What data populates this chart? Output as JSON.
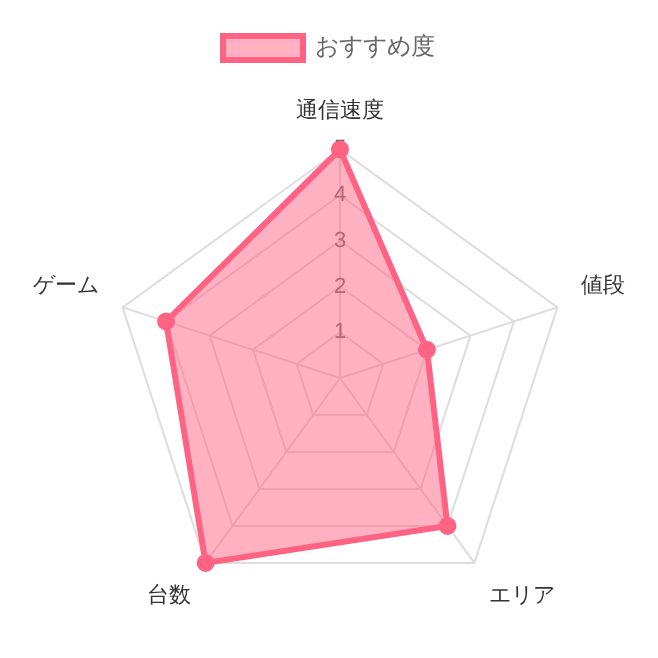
{
  "chart_data": {
    "type": "radar",
    "categories": [
      "通信速度",
      "値段",
      "エリア",
      "台数",
      "ゲーム"
    ],
    "series": [
      {
        "name": "おすすめ度",
        "color": "#ff6384",
        "values": [
          5,
          2,
          4,
          5,
          4
        ]
      }
    ],
    "ylim": [
      0,
      5
    ],
    "yticks": [
      1,
      2,
      3,
      4,
      5
    ],
    "grid": true,
    "legend": "top",
    "marker": "circle"
  }
}
